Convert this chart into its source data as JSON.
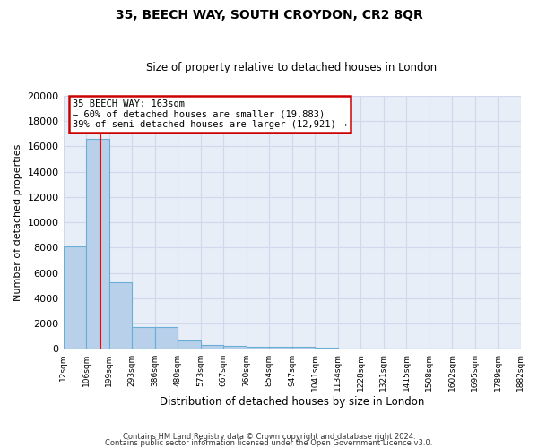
{
  "title": "35, BEECH WAY, SOUTH CROYDON, CR2 8QR",
  "subtitle": "Size of property relative to detached houses in London",
  "xlabel": "Distribution of detached houses by size in London",
  "ylabel": "Number of detached properties",
  "bin_edges": [
    12,
    106,
    199,
    293,
    386,
    480,
    573,
    667,
    760,
    854,
    947,
    1041,
    1134,
    1228,
    1321,
    1415,
    1508,
    1602,
    1695,
    1789,
    1882
  ],
  "bar_heights": [
    8100,
    16600,
    5300,
    1750,
    1750,
    700,
    300,
    250,
    200,
    200,
    150,
    80,
    50,
    30,
    20,
    15,
    10,
    8,
    5,
    3
  ],
  "bar_color": "#b8d0ea",
  "bar_edge_color": "#6aaed6",
  "background_color": "#e8eef8",
  "grid_color": "#d0d8ec",
  "red_line_x": 163,
  "annotation_line1": "35 BEECH WAY: 163sqm",
  "annotation_line2": "← 60% of detached houses are smaller (19,883)",
  "annotation_line3": "39% of semi-detached houses are larger (12,921) →",
  "annotation_box_color": "#ffffff",
  "annotation_box_edge": "#cc0000",
  "ylim": [
    0,
    20000
  ],
  "yticks": [
    0,
    2000,
    4000,
    6000,
    8000,
    10000,
    12000,
    14000,
    16000,
    18000,
    20000
  ],
  "footnote1": "Contains HM Land Registry data © Crown copyright and database right 2024.",
  "footnote2": "Contains public sector information licensed under the Open Government Licence v3.0."
}
